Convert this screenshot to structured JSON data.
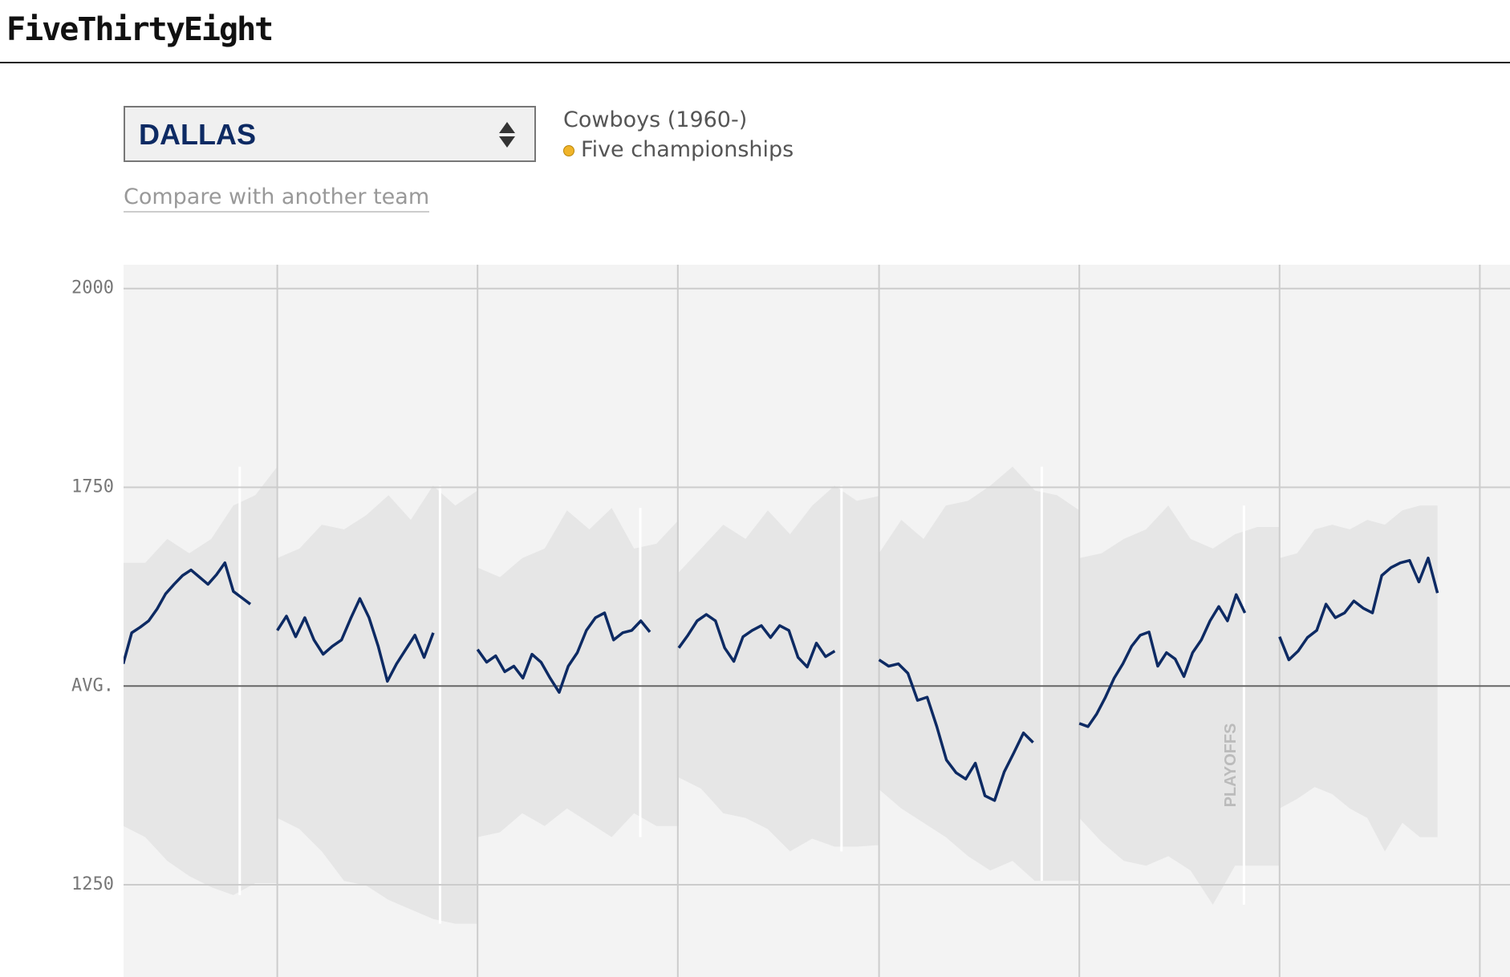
{
  "header": {
    "logo": "FiveThirtyEight"
  },
  "controls": {
    "team_select": "DALLAS",
    "compare_link": "Compare with another team"
  },
  "team_info": {
    "name": "Cowboys (1960-)",
    "championships": "Five championships"
  },
  "chart_data": {
    "type": "line",
    "color": "#0d2a63",
    "band_color": "#e6e6e6",
    "ylim": [
      1134,
      2030
    ],
    "yticks": [
      2000,
      1750,
      {
        "value": 1500,
        "label": "AVG."
      },
      1250
    ],
    "grid": true,
    "annotation": "PLAYOFFS",
    "series": [
      {
        "values": [
          1528,
          1567,
          1574,
          1582,
          1597,
          1616,
          1628,
          1639,
          1646,
          1637,
          1628,
          1640,
          1655,
          1619,
          1611,
          1603
        ],
        "band_high": [
          1655,
          1655,
          1685,
          1667,
          1685,
          1727,
          1740,
          1776
        ],
        "band_low": [
          1324,
          1310,
          1280,
          1261,
          1247,
          1237,
          1252,
          1252
        ]
      },
      {
        "values": [
          1570,
          1588,
          1562,
          1586,
          1558,
          1540,
          1550,
          1558,
          1585,
          1610,
          1586,
          1550,
          1506,
          1528,
          1546,
          1564,
          1536,
          1567
        ],
        "band_high": [
          1661,
          1673,
          1703,
          1697,
          1715,
          1740,
          1709,
          1752,
          1727,
          1746
        ],
        "band_low": [
          1334,
          1320,
          1292,
          1255,
          1249,
          1231,
          1219,
          1207,
          1201,
          1201
        ]
      },
      {
        "values": [
          1546,
          1530,
          1538,
          1518,
          1525,
          1510,
          1540,
          1530,
          1510,
          1492,
          1525,
          1542,
          1570,
          1586,
          1592,
          1558,
          1567,
          1570,
          1582,
          1568
        ],
        "band_high": [
          1649,
          1637,
          1661,
          1673,
          1721,
          1697,
          1724,
          1673,
          1679,
          1709
        ],
        "band_low": [
          1310,
          1316,
          1340,
          1324,
          1346,
          1328,
          1310,
          1340,
          1324,
          1324
        ]
      },
      {
        "values": [
          1548,
          1564,
          1582,
          1590,
          1582,
          1548,
          1531,
          1562,
          1570,
          1576,
          1561,
          1576,
          1570,
          1536,
          1524,
          1554,
          1537,
          1544
        ],
        "band_high": [
          1643,
          1673,
          1703,
          1685,
          1721,
          1691,
          1727,
          1752,
          1733,
          1739
        ],
        "band_low": [
          1385,
          1371,
          1340,
          1334,
          1320,
          1292,
          1308,
          1298,
          1298,
          1300
        ]
      },
      {
        "values": [
          1533,
          1525,
          1528,
          1516,
          1482,
          1486,
          1449,
          1407,
          1391,
          1383,
          1403,
          1362,
          1356,
          1392,
          1416,
          1441,
          1429
        ],
        "band_high": [
          1667,
          1709,
          1685,
          1727,
          1733,
          1752,
          1776,
          1746,
          1740,
          1721
        ],
        "band_low": [
          1370,
          1346,
          1328,
          1310,
          1286,
          1268,
          1280,
          1255,
          1255,
          1255
        ]
      },
      {
        "values": [
          1453,
          1449,
          1465,
          1486,
          1510,
          1528,
          1550,
          1564,
          1568,
          1525,
          1542,
          1534,
          1512,
          1542,
          1558,
          1582,
          1600,
          1582,
          1615,
          1592
        ],
        "band_high": [
          1661,
          1667,
          1685,
          1697,
          1727,
          1685,
          1673,
          1691,
          1700,
          1700
        ],
        "band_low": [
          1334,
          1304,
          1280,
          1274,
          1286,
          1268,
          1225,
          1274,
          1274,
          1274
        ]
      },
      {
        "values": [
          1562,
          1533,
          1544,
          1561,
          1570,
          1603,
          1586,
          1592,
          1607,
          1598,
          1592,
          1639,
          1649,
          1655,
          1658,
          1631,
          1661,
          1617
        ],
        "band_high": [
          1661,
          1667,
          1697,
          1703,
          1697,
          1709,
          1703,
          1721,
          1727,
          1727
        ],
        "band_low": [
          1346,
          1358,
          1373,
          1364,
          1346,
          1334,
          1292,
          1328,
          1310,
          1310
        ]
      }
    ]
  }
}
